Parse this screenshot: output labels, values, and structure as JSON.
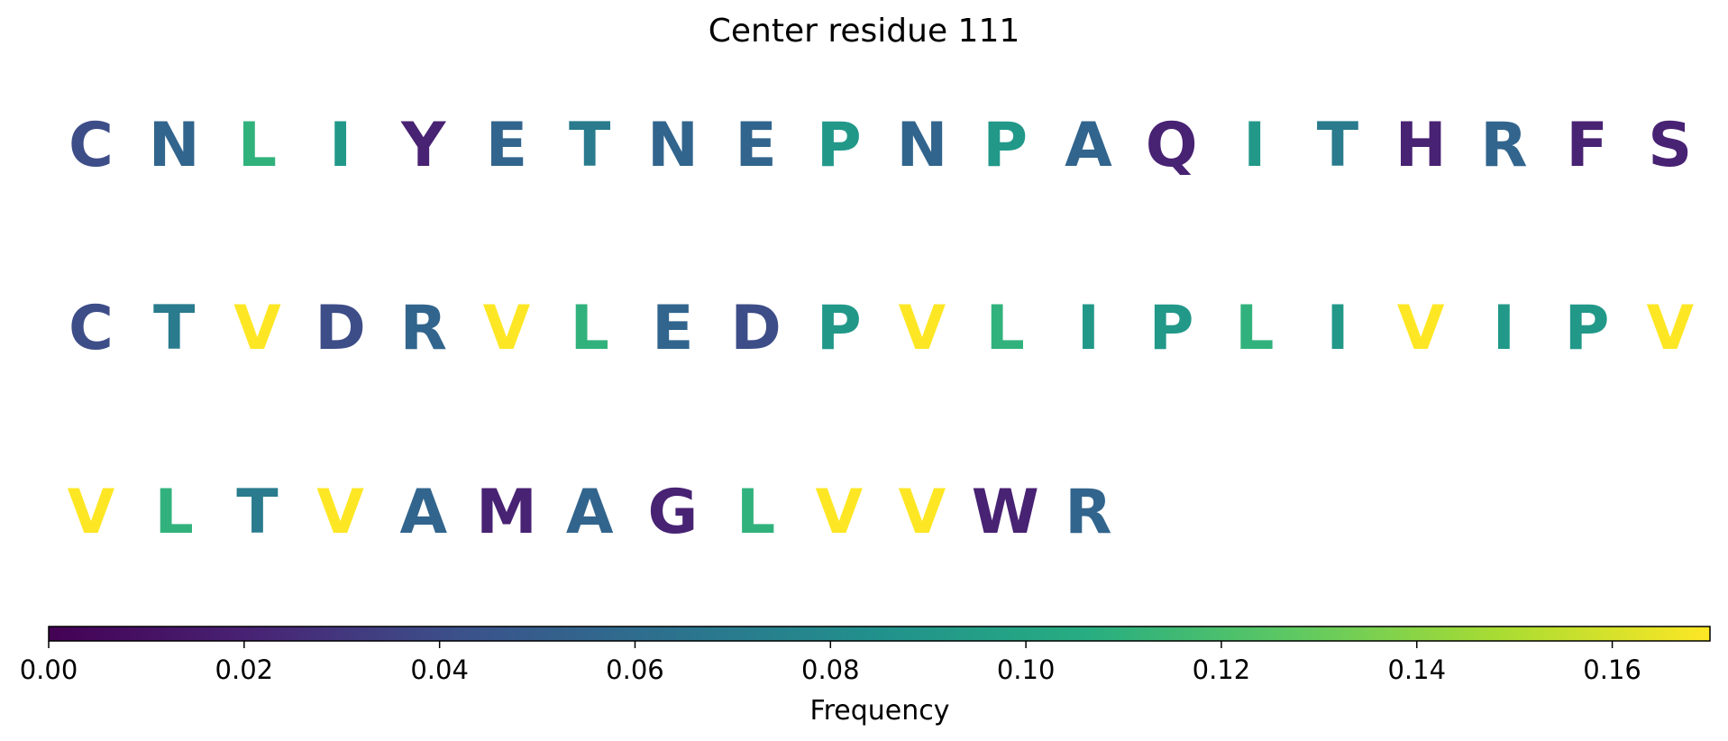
{
  "chart_data": {
    "type": "heatmap",
    "title": "Center residue 111",
    "colormap": "viridis",
    "colorbar": {
      "label": "Frequency",
      "range": [
        0,
        0.17
      ],
      "ticks": [
        "0.00",
        "0.02",
        "0.04",
        "0.06",
        "0.08",
        "0.10",
        "0.12",
        "0.14",
        "0.16"
      ]
    },
    "rows": [
      {
        "residues": [
          "C",
          "N",
          "L",
          "I",
          "Y",
          "E",
          "T",
          "N",
          "E",
          "P",
          "N",
          "P",
          "A",
          "Q",
          "I",
          "T",
          "H",
          "R",
          "F",
          "S"
        ],
        "frequencies": [
          0.04,
          0.055,
          0.11,
          0.09,
          0.02,
          0.055,
          0.07,
          0.055,
          0.055,
          0.09,
          0.055,
          0.09,
          0.055,
          0.02,
          0.09,
          0.07,
          0.02,
          0.055,
          0.02,
          0.02
        ]
      },
      {
        "residues": [
          "C",
          "T",
          "V",
          "D",
          "R",
          "V",
          "L",
          "E",
          "D",
          "P",
          "V",
          "L",
          "I",
          "P",
          "L",
          "I",
          "V",
          "I",
          "P",
          "V"
        ],
        "frequencies": [
          0.04,
          0.07,
          0.17,
          0.04,
          0.055,
          0.17,
          0.11,
          0.055,
          0.04,
          0.09,
          0.17,
          0.11,
          0.09,
          0.09,
          0.11,
          0.09,
          0.17,
          0.09,
          0.09,
          0.17
        ]
      },
      {
        "residues": [
          "V",
          "L",
          "T",
          "V",
          "A",
          "M",
          "A",
          "G",
          "L",
          "V",
          "V",
          "W",
          "R"
        ],
        "frequencies": [
          0.17,
          0.11,
          0.07,
          0.17,
          0.055,
          0.02,
          0.055,
          0.02,
          0.11,
          0.17,
          0.17,
          0.02,
          0.055
        ]
      }
    ]
  }
}
